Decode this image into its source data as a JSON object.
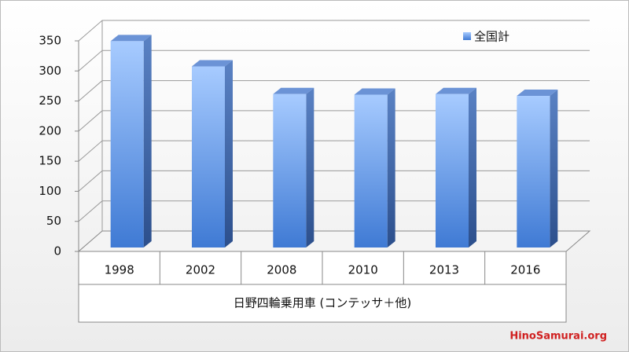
{
  "chart_data": {
    "type": "bar",
    "categories": [
      "1998",
      "2002",
      "2008",
      "2010",
      "2013",
      "2016"
    ],
    "series": [
      {
        "name": "全国計",
        "color": "#4a86e0",
        "values": [
          343,
          301,
          255,
          254,
          255,
          252
        ]
      }
    ],
    "x_label": "日野四輪乗用車 (コンテッサ＋他)",
    "ylim": [
      0,
      350
    ],
    "yticks": [
      0,
      50,
      100,
      150,
      200,
      250,
      300,
      350
    ],
    "grid": true,
    "legend": "top-right",
    "watermark": "HinoSamurai.org"
  }
}
